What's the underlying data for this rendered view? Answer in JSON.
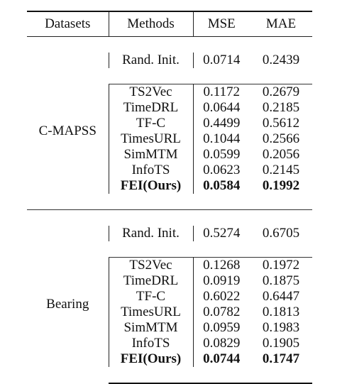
{
  "header": {
    "datasets": "Datasets",
    "methods": "Methods",
    "mse": "MSE",
    "mae": "MAE"
  },
  "sections": [
    {
      "dataset": "C-MAPSS",
      "baseline": {
        "method": "Rand. Init.",
        "mse": "0.0714",
        "mae": "0.2439"
      },
      "rows": [
        {
          "method": "TS2Vec",
          "mse": "0.1172",
          "mae": "0.2679"
        },
        {
          "method": "TimeDRL",
          "mse": "0.0644",
          "mae": "0.2185"
        },
        {
          "method": "TF-C",
          "mse": "0.4499",
          "mae": "0.5612"
        },
        {
          "method": "TimesURL",
          "mse": "0.1044",
          "mae": "0.2566"
        },
        {
          "method": "SimMTM",
          "mse": "0.0599",
          "mae": "0.2056"
        },
        {
          "method": "InfoTS",
          "mse": "0.0623",
          "mae": "0.2145"
        },
        {
          "method": "FEI(Ours)",
          "mse": "0.0584",
          "mae": "0.1992"
        }
      ]
    },
    {
      "dataset": "Bearing",
      "baseline": {
        "method": "Rand. Init.",
        "mse": "0.5274",
        "mae": "0.6705"
      },
      "rows": [
        {
          "method": "TS2Vec",
          "mse": "0.1268",
          "mae": "0.1972"
        },
        {
          "method": "TimeDRL",
          "mse": "0.0919",
          "mae": "0.1875"
        },
        {
          "method": "TF-C",
          "mse": "0.6022",
          "mae": "0.6447"
        },
        {
          "method": "TimesURL",
          "mse": "0.0782",
          "mae": "0.1813"
        },
        {
          "method": "SimMTM",
          "mse": "0.0959",
          "mae": "0.1983"
        },
        {
          "method": "InfoTS",
          "mse": "0.0829",
          "mae": "0.1905"
        },
        {
          "method": "FEI(Ours)",
          "mse": "0.0744",
          "mae": "0.1747"
        }
      ]
    }
  ]
}
